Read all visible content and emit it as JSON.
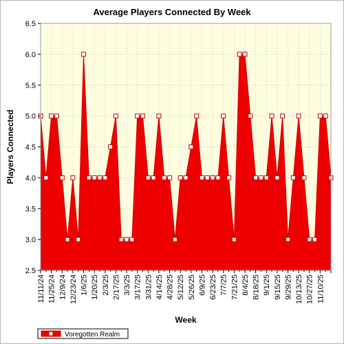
{
  "colors": {
    "plot_background": "#fffde0",
    "series_fill": "#ee0000",
    "series_line": "#cc0000",
    "marker_fill": "#ffffff",
    "grid": "#c8c8b0",
    "axis": "#000000"
  },
  "chart_data": {
    "type": "area",
    "title": "Average Players Connected By Week",
    "xlabel": "Week",
    "ylabel": "Players Connected",
    "ylim": [
      2.5,
      6.5
    ],
    "yticks": [
      "2.5",
      "3.0",
      "3.5",
      "4.0",
      "4.5",
      "5.0",
      "5.5",
      "6.0",
      "6.5"
    ],
    "grid": true,
    "legend_position": "bottom-left",
    "xtick_labels": [
      "11/11/24",
      "11/25/24",
      "12/9/24",
      "12/23/24",
      "1/6/25",
      "1/20/25",
      "2/3/25",
      "2/17/25",
      "3/3/25",
      "3/17/25",
      "3/31/25",
      "4/14/25",
      "4/28/25",
      "5/12/25",
      "5/26/25",
      "6/9/25",
      "6/23/25",
      "7/7/25",
      "7/21/25",
      "8/4/25",
      "8/18/25",
      "9/1/25",
      "9/15/25",
      "9/29/25",
      "10/13/25",
      "10/27/25",
      "11/10/25"
    ],
    "series": [
      {
        "name": "Voregotten Realm",
        "values": [
          5.0,
          4.0,
          5.0,
          5.0,
          4.0,
          3.0,
          4.0,
          3.0,
          6.0,
          4.0,
          4.0,
          4.0,
          4.0,
          4.5,
          5.0,
          3.0,
          3.0,
          3.0,
          5.0,
          5.0,
          4.0,
          4.0,
          5.0,
          4.0,
          4.0,
          3.0,
          4.0,
          4.0,
          4.5,
          5.0,
          4.0,
          4.0,
          4.0,
          4.0,
          5.0,
          4.0,
          3.0,
          6.0,
          6.0,
          5.0,
          4.0,
          4.0,
          4.0,
          5.0,
          4.0,
          5.0,
          3.0,
          4.0,
          5.0,
          4.0,
          3.0,
          3.0,
          5.0,
          5.0,
          4.0
        ]
      }
    ]
  }
}
